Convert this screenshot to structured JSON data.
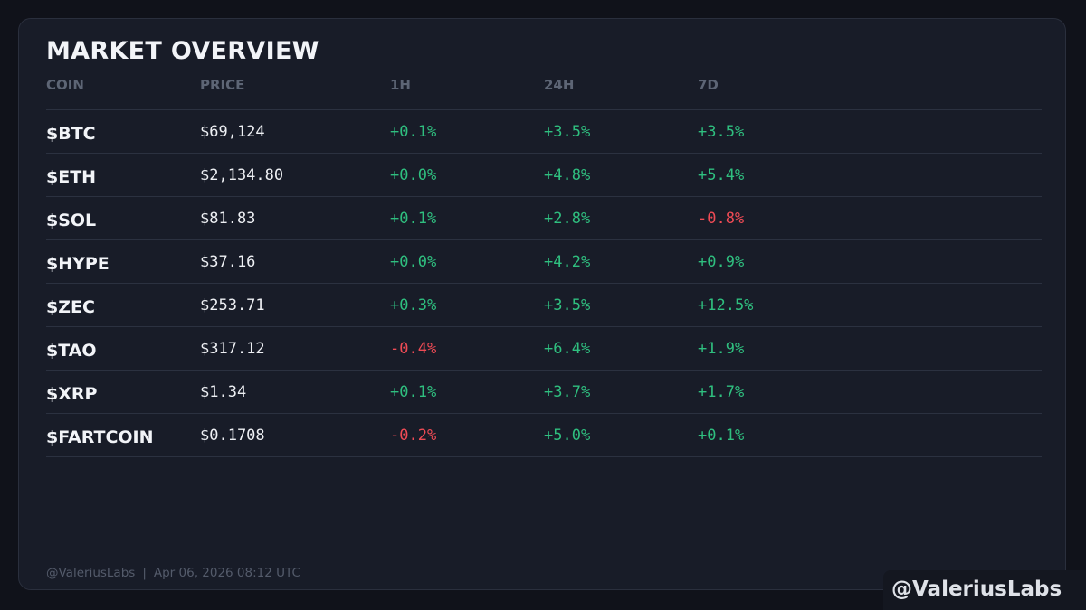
{
  "title": "MARKET OVERVIEW",
  "columns": [
    "COIN",
    "PRICE",
    "1H",
    "24H",
    "7D"
  ],
  "colors": {
    "positive": "#2fbf7f",
    "negative": "#ef4b55",
    "background": "#181c28"
  },
  "rows": [
    {
      "coin": "$BTC",
      "price": "$69,124",
      "h1": "+0.1%",
      "h24": "+3.5%",
      "d7": "+3.5%"
    },
    {
      "coin": "$ETH",
      "price": "$2,134.80",
      "h1": "+0.0%",
      "h24": "+4.8%",
      "d7": "+5.4%"
    },
    {
      "coin": "$SOL",
      "price": "$81.83",
      "h1": "+0.1%",
      "h24": "+2.8%",
      "d7": "-0.8%"
    },
    {
      "coin": "$HYPE",
      "price": "$37.16",
      "h1": "+0.0%",
      "h24": "+4.2%",
      "d7": "+0.9%"
    },
    {
      "coin": "$ZEC",
      "price": "$253.71",
      "h1": "+0.3%",
      "h24": "+3.5%",
      "d7": "+12.5%"
    },
    {
      "coin": "$TAO",
      "price": "$317.12",
      "h1": "-0.4%",
      "h24": "+6.4%",
      "d7": "+1.9%"
    },
    {
      "coin": "$XRP",
      "price": "$1.34",
      "h1": "+0.1%",
      "h24": "+3.7%",
      "d7": "+1.7%"
    },
    {
      "coin": "$FARTCOIN",
      "price": "$0.1708",
      "h1": "-0.2%",
      "h24": "+5.0%",
      "d7": "+0.1%"
    }
  ],
  "footer": {
    "handle": "@ValeriusLabs",
    "separator": "|",
    "timestamp": "Apr 06, 2026 08:12 UTC"
  },
  "watermark": "@ValeriusLabs"
}
